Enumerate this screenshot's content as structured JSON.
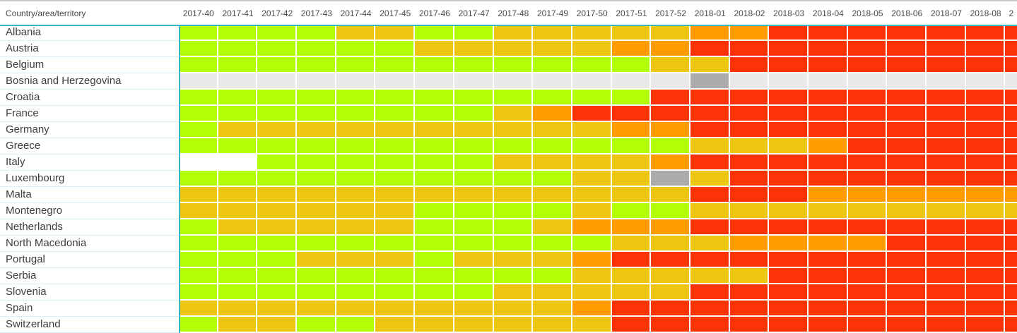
{
  "header": {
    "row_header": "Country/area/territory",
    "partial_column_label": "2"
  },
  "palette": {
    "green": "#B2FF05",
    "amber": "#EDC70F",
    "orange": "#FF9D00",
    "red": "#FB3307",
    "gray_no_data": "#E9E9E9",
    "gray_dark": "#ABABAB",
    "white_blank": "#FFFFFF",
    "accent_teal": "#35B7C6",
    "label_separator": "#DCEFF9",
    "header_text": "#4A4A4A",
    "label_text": "#3D3D3D"
  },
  "code_to_palette": {
    "g": "green",
    "a": "amber",
    "o": "orange",
    "r": "red",
    "n": "gray_no_data",
    "d": "gray_dark",
    "w": "white_blank"
  },
  "chart_data": {
    "type": "heatmap",
    "x_categories": [
      "2017-40",
      "2017-41",
      "2017-42",
      "2017-43",
      "2017-44",
      "2017-45",
      "2017-46",
      "2017-47",
      "2017-48",
      "2017-49",
      "2017-50",
      "2017-51",
      "2017-52",
      "2018-01",
      "2018-02",
      "2018-03",
      "2018-04",
      "2018-05",
      "2018-06",
      "2018-07",
      "2018-08"
    ],
    "partial_x_label": "2",
    "y_categories": [
      "Albania",
      "Austria",
      "Belgium",
      "Bosnia and Herzegovina",
      "Croatia",
      "France",
      "Germany",
      "Greece",
      "Italy",
      "Luxembourg",
      "Malta",
      "Montenegro",
      "Netherlands",
      "North Macedonia",
      "Portugal",
      "Serbia",
      "Slovenia",
      "Spain",
      "Switzerland"
    ],
    "color_legend": {
      "g": "bright yellow-green cell",
      "a": "amber-yellow cell",
      "o": "orange cell",
      "r": "red cell",
      "n": "light gray cell (no data)",
      "d": "dark gray cell",
      "w": "white/blank cell"
    },
    "values": [
      [
        "g",
        "g",
        "g",
        "g",
        "a",
        "a",
        "g",
        "g",
        "a",
        "a",
        "a",
        "a",
        "a",
        "o",
        "o",
        "r",
        "r",
        "r",
        "r",
        "r",
        "r",
        "r"
      ],
      [
        "g",
        "g",
        "g",
        "g",
        "g",
        "g",
        "a",
        "a",
        "a",
        "a",
        "a",
        "o",
        "o",
        "r",
        "r",
        "r",
        "r",
        "r",
        "r",
        "r",
        "r",
        "r"
      ],
      [
        "g",
        "g",
        "g",
        "g",
        "g",
        "g",
        "g",
        "g",
        "g",
        "g",
        "g",
        "g",
        "a",
        "a",
        "r",
        "r",
        "r",
        "r",
        "r",
        "r",
        "r",
        "r"
      ],
      [
        "n",
        "n",
        "n",
        "n",
        "n",
        "n",
        "n",
        "n",
        "n",
        "n",
        "n",
        "n",
        "n",
        "d",
        "n",
        "n",
        "n",
        "n",
        "n",
        "n",
        "n",
        "n"
      ],
      [
        "g",
        "g",
        "g",
        "g",
        "g",
        "g",
        "g",
        "g",
        "g",
        "g",
        "g",
        "g",
        "r",
        "r",
        "r",
        "r",
        "r",
        "r",
        "r",
        "r",
        "r",
        "r"
      ],
      [
        "g",
        "g",
        "g",
        "g",
        "g",
        "g",
        "g",
        "g",
        "a",
        "o",
        "r",
        "r",
        "r",
        "r",
        "r",
        "r",
        "r",
        "r",
        "r",
        "r",
        "r",
        "r"
      ],
      [
        "g",
        "a",
        "a",
        "a",
        "a",
        "a",
        "a",
        "a",
        "a",
        "a",
        "a",
        "o",
        "o",
        "r",
        "r",
        "r",
        "r",
        "r",
        "r",
        "r",
        "r",
        "r"
      ],
      [
        "g",
        "g",
        "g",
        "g",
        "g",
        "g",
        "g",
        "g",
        "g",
        "g",
        "g",
        "g",
        "g",
        "a",
        "a",
        "a",
        "o",
        "r",
        "r",
        "r",
        "r",
        "r"
      ],
      [
        "w",
        "w",
        "g",
        "g",
        "g",
        "g",
        "g",
        "g",
        "a",
        "a",
        "a",
        "a",
        "o",
        "r",
        "r",
        "r",
        "r",
        "r",
        "r",
        "r",
        "r",
        "r"
      ],
      [
        "g",
        "g",
        "g",
        "g",
        "g",
        "g",
        "g",
        "g",
        "g",
        "g",
        "a",
        "a",
        "d",
        "a",
        "r",
        "r",
        "r",
        "r",
        "r",
        "r",
        "r",
        "r"
      ],
      [
        "a",
        "a",
        "a",
        "a",
        "a",
        "a",
        "a",
        "a",
        "a",
        "a",
        "a",
        "a",
        "a",
        "r",
        "r",
        "r",
        "o",
        "o",
        "o",
        "o",
        "o",
        "o"
      ],
      [
        "a",
        "a",
        "a",
        "a",
        "a",
        "a",
        "g",
        "g",
        "g",
        "g",
        "a",
        "g",
        "g",
        "a",
        "a",
        "a",
        "a",
        "a",
        "a",
        "a",
        "a",
        "a"
      ],
      [
        "g",
        "a",
        "a",
        "a",
        "a",
        "a",
        "g",
        "g",
        "g",
        "a",
        "o",
        "o",
        "o",
        "r",
        "r",
        "r",
        "r",
        "r",
        "r",
        "r",
        "r",
        "r"
      ],
      [
        "g",
        "g",
        "g",
        "g",
        "g",
        "g",
        "g",
        "g",
        "g",
        "g",
        "g",
        "a",
        "a",
        "a",
        "o",
        "o",
        "o",
        "o",
        "r",
        "r",
        "r",
        "r"
      ],
      [
        "g",
        "g",
        "g",
        "a",
        "a",
        "a",
        "g",
        "a",
        "a",
        "a",
        "o",
        "r",
        "r",
        "r",
        "r",
        "r",
        "r",
        "r",
        "r",
        "r",
        "r",
        "r"
      ],
      [
        "g",
        "g",
        "g",
        "g",
        "g",
        "g",
        "g",
        "g",
        "g",
        "g",
        "a",
        "a",
        "a",
        "a",
        "a",
        "r",
        "r",
        "r",
        "r",
        "r",
        "r",
        "r"
      ],
      [
        "g",
        "g",
        "g",
        "g",
        "g",
        "g",
        "g",
        "g",
        "a",
        "a",
        "a",
        "a",
        "a",
        "r",
        "r",
        "r",
        "r",
        "r",
        "r",
        "r",
        "r",
        "r"
      ],
      [
        "a",
        "a",
        "a",
        "a",
        "a",
        "a",
        "a",
        "a",
        "a",
        "a",
        "o",
        "r",
        "r",
        "r",
        "r",
        "r",
        "r",
        "r",
        "r",
        "r",
        "r",
        "r"
      ],
      [
        "g",
        "a",
        "a",
        "g",
        "g",
        "a",
        "a",
        "a",
        "a",
        "a",
        "a",
        "r",
        "r",
        "r",
        "r",
        "r",
        "r",
        "r",
        "r",
        "r",
        "r",
        "r"
      ]
    ]
  }
}
